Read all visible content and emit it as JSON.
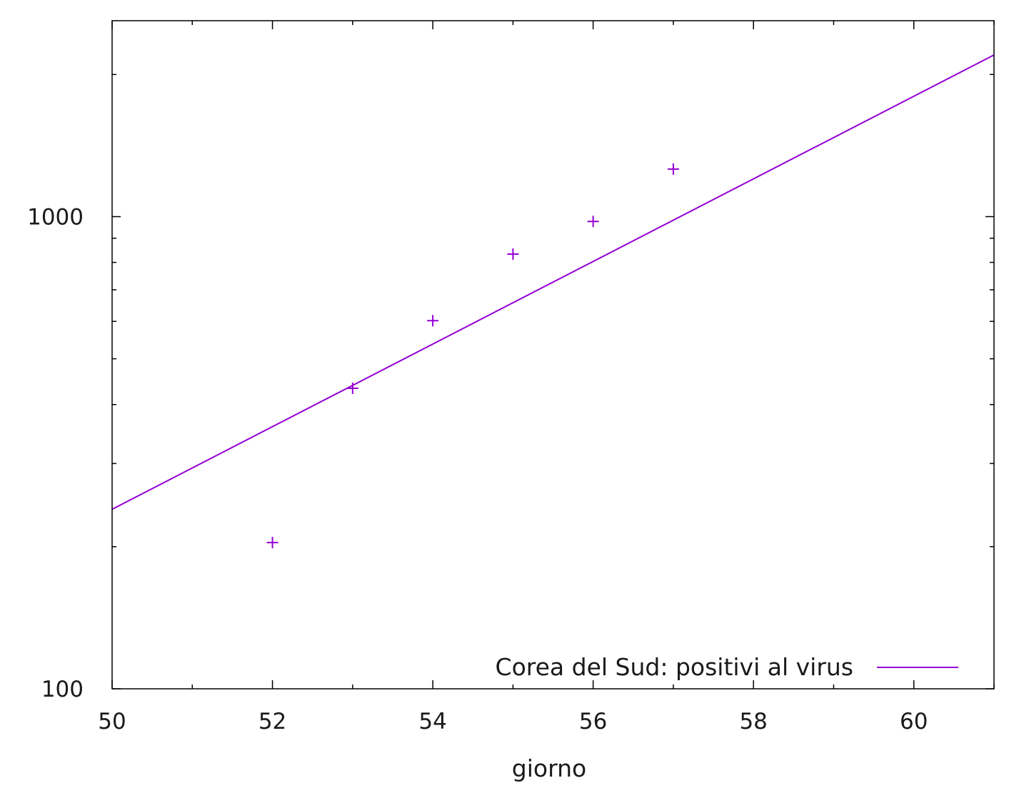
{
  "chart_data": {
    "type": "scatter",
    "title": "",
    "xlabel": "giorno",
    "ylabel": "",
    "xlim": [
      50,
      61
    ],
    "ylim": [
      100,
      2600
    ],
    "y_scale": "log",
    "grid": false,
    "legend_position": "bottom-right",
    "x_ticks": [
      "50",
      "52",
      "54",
      "56",
      "58",
      "60"
    ],
    "y_ticks": [
      "100",
      "1000"
    ],
    "series": [
      {
        "name": "Corea del Sud: positivi al virus",
        "kind": "line",
        "color": "#9400d3",
        "fit_points": [
          {
            "x": 50,
            "y": 240
          },
          {
            "x": 61,
            "y": 2200
          }
        ]
      },
      {
        "kind": "points",
        "marker": "+",
        "color": "#9400d3",
        "points": [
          {
            "x": 52,
            "y": 204
          },
          {
            "x": 53,
            "y": 433
          },
          {
            "x": 54,
            "y": 602
          },
          {
            "x": 55,
            "y": 833
          },
          {
            "x": 56,
            "y": 977
          },
          {
            "x": 57,
            "y": 1261
          }
        ]
      }
    ]
  }
}
